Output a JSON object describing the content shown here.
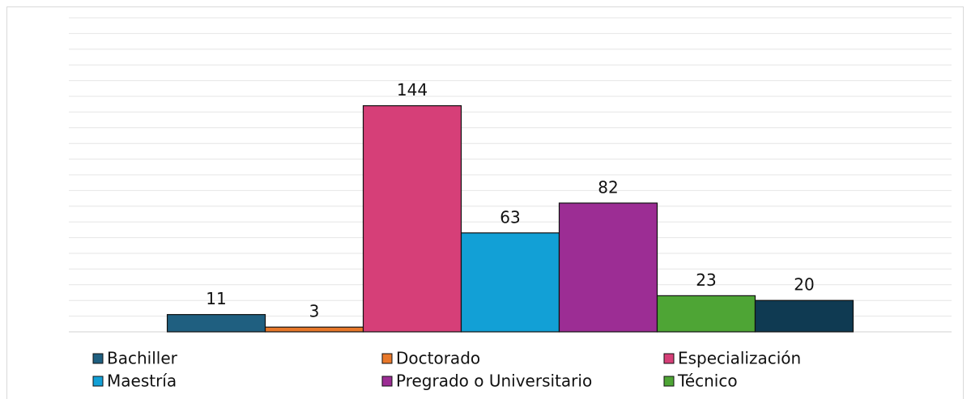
{
  "chart_data": {
    "type": "bar",
    "categories": [
      null
    ],
    "series": [
      {
        "name": "Bachiller",
        "color": "#1f5f80",
        "values": [
          11
        ]
      },
      {
        "name": "Doctorado",
        "color": "#e8782a",
        "values": [
          3
        ]
      },
      {
        "name": "Especialización",
        "color": "#d63f78",
        "values": [
          144
        ]
      },
      {
        "name": "Maestría",
        "color": "#12a0d6",
        "values": [
          63
        ]
      },
      {
        "name": "Pregrado o Universitario",
        "color": "#9c2d94",
        "values": [
          82
        ]
      },
      {
        "name": "Técnico",
        "color": "#4ea535",
        "values": [
          23
        ]
      },
      {
        "name": null,
        "color": "#0f3a52",
        "values": [
          20
        ]
      }
    ],
    "ylim": [
      0,
      200
    ],
    "yticks": [
      0,
      10,
      20,
      30,
      40,
      50,
      60,
      70,
      80,
      90,
      100,
      110,
      120,
      130,
      140,
      150,
      160,
      170,
      180,
      190,
      200
    ],
    "grid": true,
    "show_tick_labels": false,
    "legend": "bottom"
  }
}
